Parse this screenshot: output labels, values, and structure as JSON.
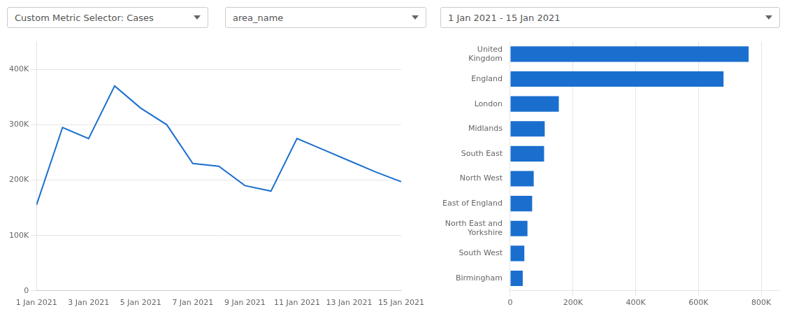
{
  "chart_data": [
    {
      "type": "line",
      "annotations": [
        "Custom Metric Selector: Cases",
        "area_name"
      ],
      "x": [
        1,
        2,
        3,
        4,
        5,
        6,
        7,
        8,
        9,
        10,
        11,
        12,
        13,
        14,
        15
      ],
      "values": [
        155000,
        295000,
        275000,
        370000,
        330000,
        300000,
        230000,
        225000,
        190000,
        180000,
        275000,
        255000,
        235000,
        215000,
        197000
      ],
      "color": "#1a6fce",
      "xlim": [
        1,
        15
      ],
      "xticks": [
        {
          "value": 1,
          "label": "1 Jan 2021"
        },
        {
          "value": 3,
          "label": "3 Jan 2021"
        },
        {
          "value": 5,
          "label": "5 Jan 2021"
        },
        {
          "value": 7,
          "label": "7 Jan 2021"
        },
        {
          "value": 9,
          "label": "9 Jan 2021"
        },
        {
          "value": 11,
          "label": "11 Jan 2021"
        },
        {
          "value": 13,
          "label": "13 Jan 2021"
        },
        {
          "value": 15,
          "label": "15 Jan 2021"
        }
      ],
      "ylim": [
        0,
        450000
      ],
      "yticks": [
        0,
        {
          "value": 100000,
          "label": "100K"
        },
        {
          "value": 200000,
          "label": "200K"
        },
        {
          "value": 300000,
          "label": "300K"
        },
        {
          "value": 400000,
          "label": "400K"
        }
      ],
      "grid": "y"
    },
    {
      "type": "bar",
      "orientation": "horizontal",
      "annotations": [
        "1 Jan 2021 - 15 Jan 2021"
      ],
      "categories": [
        "United\nKingdom",
        "England",
        "London",
        "Midlands",
        "South East",
        "North West",
        "East of England",
        "North East and\nYorkshire",
        "South West",
        "Birmingham"
      ],
      "values": [
        760000,
        680000,
        155000,
        110000,
        108000,
        75000,
        70000,
        55000,
        45000,
        40000
      ],
      "color": "#1a6fce",
      "xlim": [
        0,
        860000
      ],
      "xticks": [
        0,
        {
          "value": 200000,
          "label": "200K"
        },
        {
          "value": 400000,
          "label": "400K"
        },
        {
          "value": 600000,
          "label": "600K"
        },
        {
          "value": 800000,
          "label": "800K"
        }
      ],
      "grid": "x"
    }
  ]
}
